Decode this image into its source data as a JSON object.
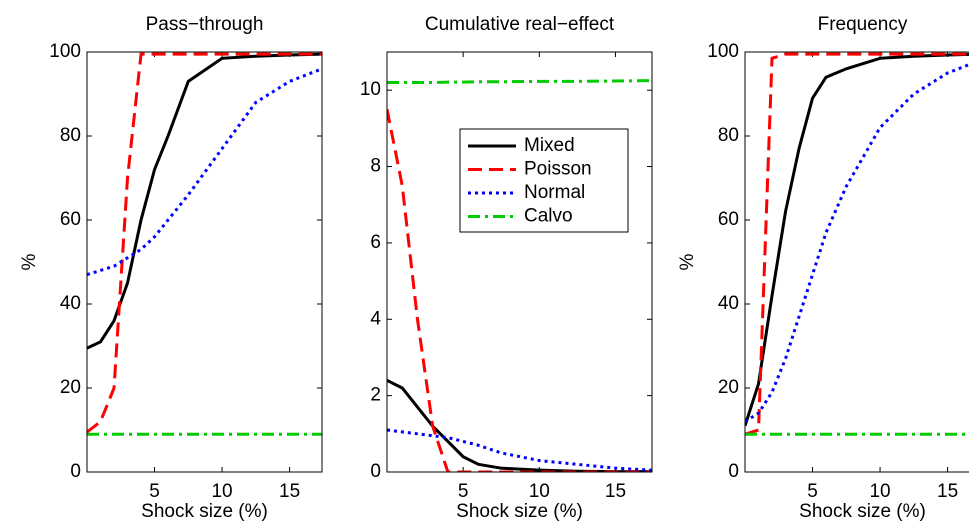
{
  "chart_data": [
    {
      "type": "line",
      "title": "Pass−through",
      "xlabel": "Shock size (%)",
      "ylabel": "%",
      "x": [
        0,
        1,
        2,
        3,
        4,
        5,
        6,
        7.5,
        10,
        12.5,
        15,
        17.4
      ],
      "xlim": [
        0,
        17.4
      ],
      "ylim": [
        0,
        100
      ],
      "xticks": [
        5,
        10,
        15
      ],
      "yticks": [
        0,
        20,
        40,
        60,
        80,
        100
      ],
      "series": [
        {
          "name": "Mixed",
          "color": "#000000",
          "style": "solid",
          "values": [
            29.5,
            31,
            36,
            45,
            60,
            72,
            80,
            93,
            98.5,
            99,
            99.3,
            99.5
          ]
        },
        {
          "name": "Poisson",
          "color": "#ff0000",
          "style": "dashed",
          "values": [
            9.5,
            12,
            20,
            70,
            99.5,
            99.5,
            99.5,
            99.5,
            99.5,
            99.5,
            99.5,
            99.5
          ]
        },
        {
          "name": "Normal",
          "color": "#0000ff",
          "style": "dotted",
          "values": [
            47,
            48,
            49,
            51,
            53,
            56,
            60,
            66,
            77,
            88,
            93,
            96
          ]
        },
        {
          "name": "Calvo",
          "color": "#00cc00",
          "style": "dashdot",
          "values": [
            9,
            9,
            9,
            9,
            9,
            9,
            9,
            9,
            9,
            9,
            9,
            9
          ]
        }
      ]
    },
    {
      "type": "line",
      "title": "Cumulative real−effect",
      "xlabel": "Shock size (%)",
      "legend": "upper-right",
      "x": [
        0,
        1,
        2,
        3,
        4,
        5,
        6,
        7.5,
        10,
        12.5,
        15,
        17.4
      ],
      "xlim": [
        0,
        17.4
      ],
      "ylim": [
        0,
        11
      ],
      "xticks": [
        5,
        10,
        15
      ],
      "yticks": [
        0,
        2,
        4,
        6,
        8,
        10
      ],
      "series": [
        {
          "name": "Mixed",
          "color": "#000000",
          "style": "solid",
          "values": [
            2.4,
            2.2,
            1.7,
            1.2,
            0.8,
            0.4,
            0.2,
            0.1,
            0.05,
            0.02,
            0.01,
            0.01
          ]
        },
        {
          "name": "Poisson",
          "color": "#ff0000",
          "style": "dashed",
          "values": [
            9.5,
            7.5,
            4,
            1.2,
            0,
            0,
            0,
            0,
            0,
            0,
            0,
            0
          ]
        },
        {
          "name": "Normal",
          "color": "#0000ff",
          "style": "dotted",
          "values": [
            1.1,
            1.05,
            1,
            0.95,
            0.9,
            0.8,
            0.7,
            0.5,
            0.3,
            0.2,
            0.1,
            0.05
          ]
        },
        {
          "name": "Calvo",
          "color": "#00cc00",
          "style": "dashdot",
          "values": [
            10.2,
            10.2,
            10.2,
            10.2,
            10.21,
            10.21,
            10.22,
            10.22,
            10.23,
            10.23,
            10.24,
            10.25
          ]
        }
      ]
    },
    {
      "type": "line",
      "title": "Frequency",
      "xlabel": "Shock size (%)",
      "ylabel": "%",
      "x": [
        0,
        1,
        2,
        3,
        4,
        5,
        6,
        7.5,
        10,
        12.5,
        15,
        17.4
      ],
      "xlim": [
        0,
        17.4
      ],
      "ylim": [
        0,
        100
      ],
      "xticks": [
        5,
        10,
        15
      ],
      "yticks": [
        0,
        20,
        40,
        60,
        80,
        100
      ],
      "series": [
        {
          "name": "Mixed",
          "color": "#000000",
          "style": "solid",
          "values": [
            11,
            21,
            42,
            62,
            77,
            89,
            94,
            96,
            98.5,
            99,
            99.3,
            99.5
          ]
        },
        {
          "name": "Poisson",
          "color": "#ff0000",
          "style": "dashed",
          "values": [
            9,
            10,
            98.5,
            99.5,
            99.5,
            99.5,
            99.5,
            99.5,
            99.5,
            99.5,
            99.5,
            99.5
          ]
        },
        {
          "name": "Normal",
          "color": "#0000ff",
          "style": "dotted",
          "values": [
            12,
            14,
            19,
            27,
            37,
            47,
            57,
            68,
            82,
            90,
            95,
            98
          ]
        },
        {
          "name": "Calvo",
          "color": "#00cc00",
          "style": "dashdot",
          "values": [
            9,
            9,
            9,
            9,
            9,
            9,
            9,
            9,
            9,
            9,
            9,
            9
          ]
        }
      ]
    }
  ]
}
